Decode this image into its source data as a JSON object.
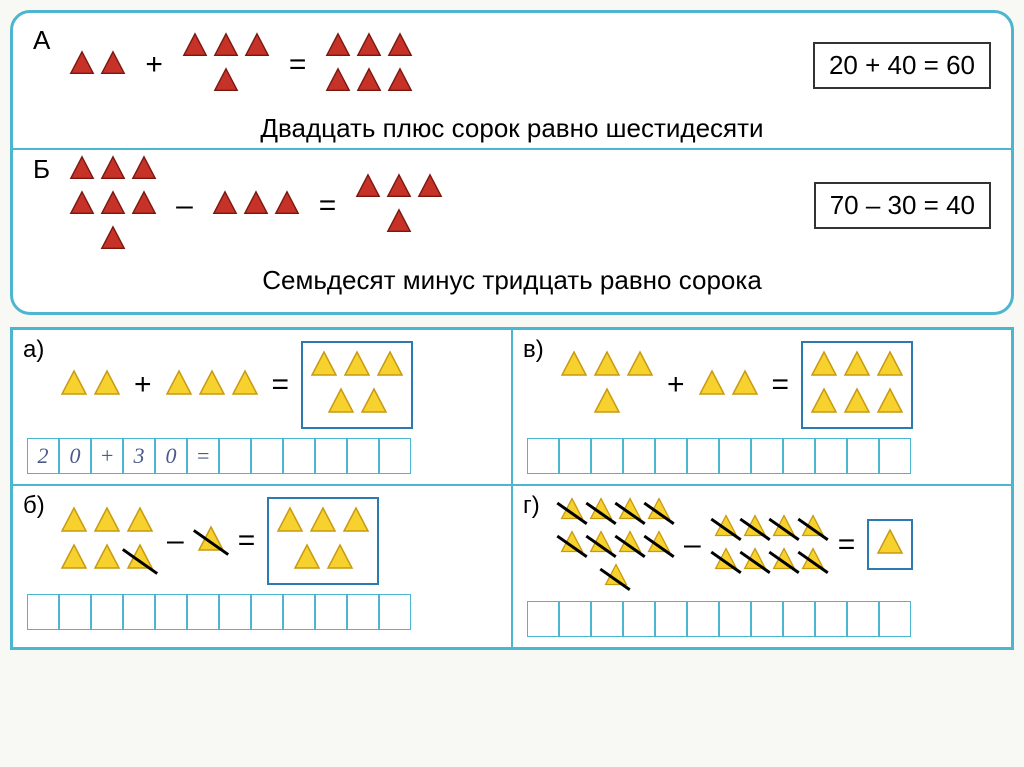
{
  "colors": {
    "red_fill": "#c73228",
    "red_stroke": "#7a1810",
    "yellow_fill": "#f7d22e",
    "yellow_stroke": "#c79a10",
    "border": "#4cb5d0"
  },
  "triangle_size": 28,
  "examples": {
    "A": {
      "label": "А",
      "operand1_rows": [
        2
      ],
      "op": "+",
      "operand2_rows": [
        3,
        1
      ],
      "result_rows": [
        3,
        3
      ],
      "equation": "20 + 40 = 60",
      "sentence": "Двадцать плюс сорок равно шестидесяти",
      "color": "red"
    },
    "B": {
      "label": "Б",
      "operand1_rows": [
        3,
        3,
        1
      ],
      "op": "–",
      "operand2_rows": [
        3
      ],
      "result_rows": [
        3,
        1
      ],
      "equation": "70 – 30 = 40",
      "sentence": "Семьдесят минус тридцать равно сорока",
      "color": "red"
    }
  },
  "quadrants": {
    "a": {
      "label": "а)",
      "operand1_rows": [
        2
      ],
      "op": "+",
      "operand2_rows": [
        3
      ],
      "result_rows": [
        3,
        2
      ],
      "cells": [
        "2",
        "0",
        "+",
        "3",
        "0",
        "=",
        "",
        "",
        "",
        "",
        "",
        ""
      ]
    },
    "v": {
      "label": "в)",
      "operand1_rows": [
        3,
        1
      ],
      "op": "+",
      "operand2_rows": [
        2
      ],
      "result_rows": [
        3,
        3
      ],
      "cells": [
        "",
        "",
        "",
        "",
        "",
        "",
        "",
        "",
        "",
        "",
        "",
        ""
      ]
    },
    "b": {
      "label": "б)",
      "operand1_rows": [
        3,
        3
      ],
      "operand1_strike": [
        [
          1,
          2
        ]
      ],
      "op": "–",
      "operand2_rows": [
        1
      ],
      "operand2_strike": [
        [
          0,
          0
        ]
      ],
      "result_rows": [
        3,
        2
      ],
      "cells": [
        "",
        "",
        "",
        "",
        "",
        "",
        "",
        "",
        "",
        "",
        "",
        ""
      ]
    },
    "g": {
      "label": "г)",
      "operand1_rows": [
        4,
        4,
        1
      ],
      "operand1_strike_all": true,
      "op": "–",
      "operand2_rows": [
        4,
        4
      ],
      "operand2_strike_all": true,
      "result_rows": [
        1
      ],
      "cells": [
        "",
        "",
        "",
        "",
        "",
        "",
        "",
        "",
        "",
        "",
        "",
        ""
      ]
    }
  }
}
